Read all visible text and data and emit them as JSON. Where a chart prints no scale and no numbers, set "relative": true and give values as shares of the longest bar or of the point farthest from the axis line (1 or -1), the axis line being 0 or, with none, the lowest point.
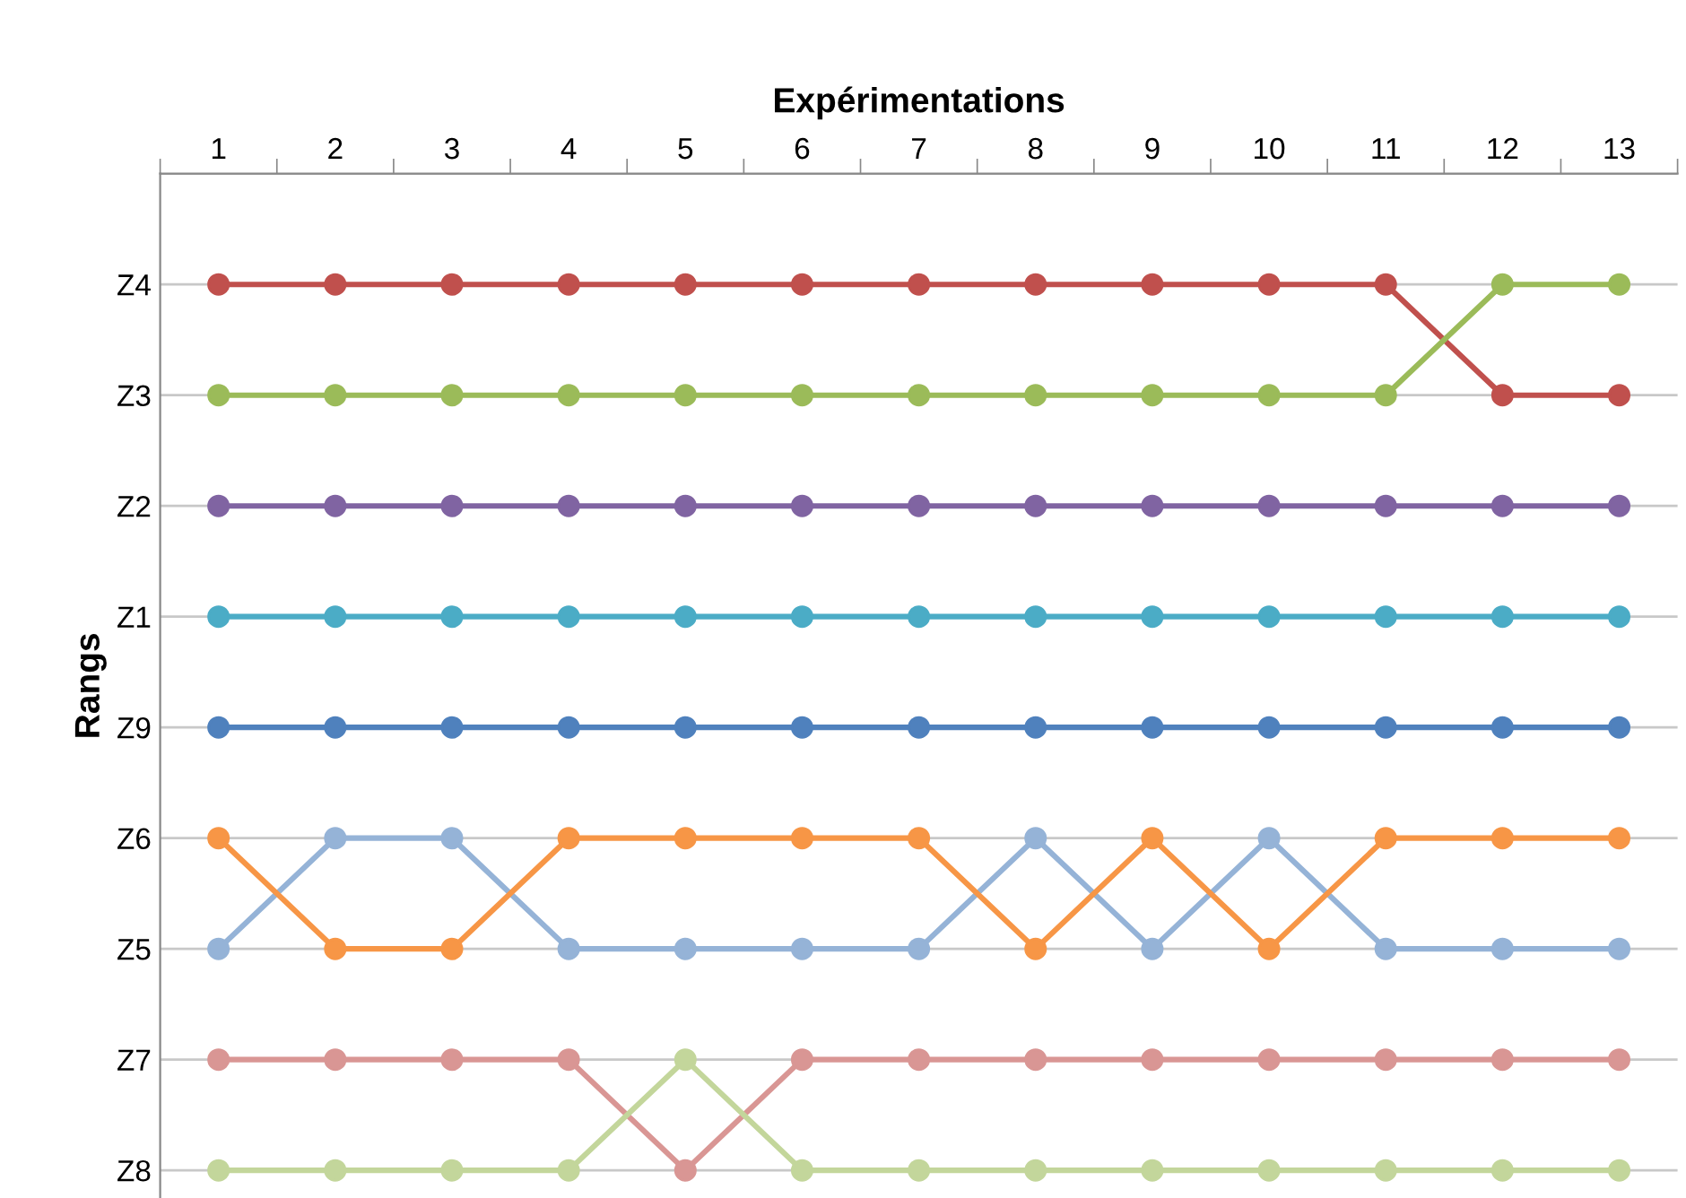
{
  "chart_data": {
    "type": "line",
    "xlabel": "Expérimentations",
    "ylabel": "Rangs",
    "relative": true,
    "categories": [
      "1",
      "2",
      "3",
      "4",
      "5",
      "6",
      "7",
      "8",
      "9",
      "10",
      "11",
      "12",
      "13"
    ],
    "y_categories": [
      "Z4",
      "Z3",
      "Z2",
      "Z1",
      "Z9",
      "Z6",
      "Z5",
      "Z7",
      "Z8"
    ],
    "grid": "y",
    "marker": "circle",
    "line_style": "solid",
    "series": [
      {
        "color": "#c0504d",
        "values": [
          1,
          1,
          1,
          1,
          1,
          1,
          1,
          1,
          1,
          1,
          1,
          0.875,
          0.875
        ]
      },
      {
        "color": "#9bbb59",
        "values": [
          0.875,
          0.875,
          0.875,
          0.875,
          0.875,
          0.875,
          0.875,
          0.875,
          0.875,
          0.875,
          0.875,
          1,
          1
        ]
      },
      {
        "color": "#8064a2",
        "values": [
          0.75,
          0.75,
          0.75,
          0.75,
          0.75,
          0.75,
          0.75,
          0.75,
          0.75,
          0.75,
          0.75,
          0.75,
          0.75
        ]
      },
      {
        "color": "#4bacc6",
        "values": [
          0.625,
          0.625,
          0.625,
          0.625,
          0.625,
          0.625,
          0.625,
          0.625,
          0.625,
          0.625,
          0.625,
          0.625,
          0.625
        ]
      },
      {
        "color": "#4f81bd",
        "values": [
          0.5,
          0.5,
          0.5,
          0.5,
          0.5,
          0.5,
          0.5,
          0.5,
          0.5,
          0.5,
          0.5,
          0.5,
          0.5
        ]
      },
      {
        "color": "#95b3d7",
        "values": [
          0.25,
          0.375,
          0.375,
          0.25,
          0.25,
          0.25,
          0.25,
          0.375,
          0.25,
          0.375,
          0.25,
          0.25,
          0.25
        ]
      },
      {
        "color": "#f79646",
        "values": [
          0.375,
          0.25,
          0.25,
          0.375,
          0.375,
          0.375,
          0.375,
          0.25,
          0.375,
          0.25,
          0.375,
          0.375,
          0.375
        ]
      },
      {
        "color": "#d99694",
        "values": [
          0.125,
          0.125,
          0.125,
          0.125,
          0,
          0.125,
          0.125,
          0.125,
          0.125,
          0.125,
          0.125,
          0.125,
          0.125
        ]
      },
      {
        "color": "#c3d69b",
        "values": [
          0,
          0,
          0,
          0,
          0.125,
          0,
          0,
          0,
          0,
          0,
          0,
          0,
          0
        ]
      }
    ]
  }
}
